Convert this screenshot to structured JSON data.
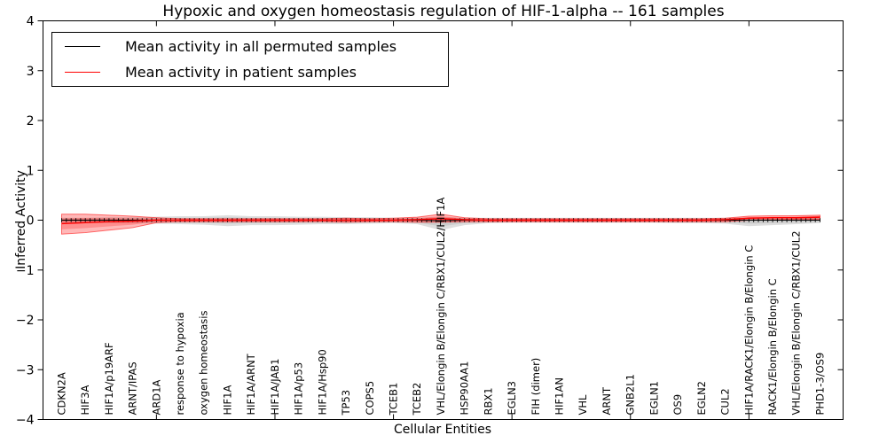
{
  "figure": {
    "title": "Hypoxic and oxygen homeostasis regulation of HIF-1-alpha -- 161 samples",
    "xlabel": "Cellular Entities",
    "ylabel": "Inferred Activity"
  },
  "legend": {
    "position": "upper left",
    "items": [
      {
        "label": "Mean activity in all permuted samples",
        "color": "#000000"
      },
      {
        "label": "Mean activity in patient samples",
        "color": "#ff0000"
      }
    ]
  },
  "colors": {
    "permuted_line": "#000000",
    "patient_line": "#ff0000",
    "permuted_band": "rgba(0,0,0,0.13)",
    "patient_band": "rgba(255,0,0,0.28)",
    "patient_band_edge": "rgba(255,0,0,0.55)",
    "frame": "#000000",
    "background": "#ffffff"
  },
  "chart_data": {
    "type": "line",
    "title": "Hypoxic and oxygen homeostasis regulation of HIF-1-alpha -- 161 samples",
    "xlabel": "Cellular Entities",
    "ylabel": "Inferred Activity",
    "n_samples": 161,
    "ylim": [
      -4,
      4
    ],
    "yticks": [
      -4,
      -3,
      -2,
      -1,
      0,
      1,
      2,
      3,
      4
    ],
    "xtick_entity_indices": [
      4,
      9,
      14,
      19,
      24,
      29
    ],
    "grid": false,
    "legend_position": "upper left",
    "categories": [
      "CDKN2A",
      "HIF3A",
      "HIF1A/p19ARF",
      "ARNT/IPAS",
      "ARD1A",
      "response to hypoxia",
      "oxygen homeostasis",
      "HIF1A",
      "HIF1A/ARNT",
      "HIF1A/JAB1",
      "HIF1A/p53",
      "HIF1A/Hsp90",
      "TP53",
      "COPS5",
      "TCEB1",
      "TCEB2",
      "VHL/Elongin B/Elongin C/RBX1/CUL2/HIF1A",
      "HSP90AA1",
      "RBX1",
      "EGLN3",
      "FIH (dimer)",
      "HIF1AN",
      "VHL",
      "ARNT",
      "GNB2L1",
      "EGLN1",
      "OS9",
      "EGLN2",
      "CUL2",
      "HIF1A/RACK1/Elongin B/Elongin C",
      "RACK1/Elongin B/Elongin C",
      "VHL/Elongin B/Elongin C/RBX1/CUL2",
      "PHD1-3/OS9"
    ],
    "series": [
      {
        "name": "Mean activity in all permuted samples",
        "color": "#000000",
        "values": [
          0,
          0,
          0,
          0,
          0,
          0,
          0,
          0,
          0,
          0,
          0,
          0,
          0,
          0,
          0,
          0,
          -0.01,
          0,
          0,
          0,
          0,
          0,
          0,
          0,
          0,
          0,
          0,
          0,
          0,
          0,
          0,
          0,
          0
        ]
      },
      {
        "name": "Mean activity in patient samples",
        "color": "#ff0000",
        "values": [
          -0.07,
          -0.05,
          -0.03,
          -0.02,
          0,
          0,
          0,
          0,
          0,
          0,
          0,
          0,
          0,
          0,
          0,
          0.01,
          0.03,
          0.01,
          0,
          0,
          0,
          0,
          0,
          0,
          0,
          0,
          0,
          0,
          0.01,
          0.04,
          0.05,
          0.05,
          0.06
        ]
      }
    ],
    "bands": [
      {
        "name": "permuted samples range",
        "upper": [
          0.05,
          0.05,
          0.06,
          0.06,
          0.07,
          0.08,
          0.08,
          0.1,
          0.08,
          0.08,
          0.07,
          0.07,
          0.06,
          0.06,
          0.05,
          0.05,
          0.06,
          0.05,
          0.05,
          0.05,
          0.05,
          0.05,
          0.05,
          0.05,
          0.05,
          0.05,
          0.05,
          0.05,
          0.05,
          0.05,
          0.05,
          0.06,
          0.08
        ],
        "lower": [
          -0.05,
          -0.05,
          -0.06,
          -0.06,
          -0.07,
          -0.08,
          -0.09,
          -0.12,
          -0.1,
          -0.1,
          -0.09,
          -0.08,
          -0.08,
          -0.07,
          -0.06,
          -0.08,
          -0.2,
          -0.1,
          -0.06,
          -0.05,
          -0.05,
          -0.05,
          -0.05,
          -0.05,
          -0.05,
          -0.05,
          -0.06,
          -0.06,
          -0.07,
          -0.12,
          -0.1,
          -0.08,
          -0.06
        ]
      },
      {
        "name": "patient samples range",
        "upper": [
          0.12,
          0.12,
          0.1,
          0.08,
          0.05,
          0.03,
          0.03,
          0.03,
          0.03,
          0.03,
          0.03,
          0.03,
          0.04,
          0.03,
          0.04,
          0.06,
          0.12,
          0.05,
          0.03,
          0.03,
          0.03,
          0.03,
          0.03,
          0.03,
          0.03,
          0.03,
          0.03,
          0.03,
          0.04,
          0.08,
          0.09,
          0.09,
          0.1
        ],
        "lower": [
          -0.28,
          -0.25,
          -0.2,
          -0.15,
          -0.05,
          -0.03,
          -0.03,
          -0.03,
          -0.03,
          -0.03,
          -0.03,
          -0.03,
          -0.04,
          -0.03,
          -0.03,
          -0.04,
          -0.04,
          -0.03,
          -0.03,
          -0.03,
          -0.03,
          -0.03,
          -0.03,
          -0.03,
          -0.03,
          -0.03,
          -0.03,
          -0.03,
          -0.03,
          0.0,
          0.01,
          0.02,
          0.02
        ]
      }
    ]
  }
}
